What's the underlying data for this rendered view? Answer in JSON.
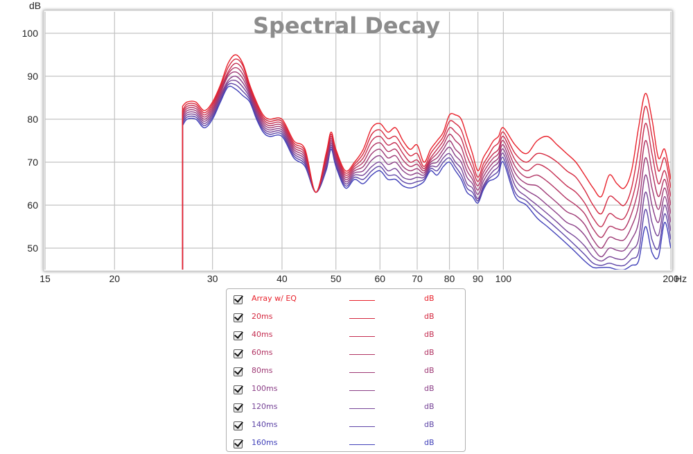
{
  "chart_data": {
    "type": "line",
    "title": "Spectral Decay",
    "ylabel": "dB",
    "xunit": "Hz",
    "xscale": "log",
    "xlim": [
      15,
      200
    ],
    "ylim": [
      45,
      105
    ],
    "xticks": [
      15,
      20,
      30,
      40,
      50,
      60,
      70,
      80,
      90,
      100,
      200
    ],
    "xtick_labels": [
      "15",
      "20",
      "30",
      "40",
      "50",
      "60",
      "70",
      "80",
      "90",
      "100",
      "200"
    ],
    "yticks": [
      50,
      60,
      70,
      80,
      90,
      100
    ],
    "grid": true,
    "legend_position": "bottom-center",
    "x": [
      26.5,
      27,
      28,
      29,
      30,
      31,
      32,
      33,
      34,
      35,
      36,
      37,
      38,
      40,
      42,
      44,
      46,
      48,
      49,
      50,
      52,
      54,
      56,
      58,
      60,
      62,
      64,
      66,
      68,
      70,
      72,
      74,
      76,
      78,
      80,
      82,
      84,
      86,
      88,
      90,
      92,
      94,
      96,
      98,
      100,
      105,
      110,
      115,
      120,
      125,
      130,
      135,
      140,
      145,
      150,
      155,
      160,
      165,
      170,
      175,
      180,
      185,
      190,
      195,
      200
    ],
    "series": [
      {
        "name": "Array w/ EQ",
        "unit": "dB",
        "color": "#e8202a",
        "values": [
          83,
          84,
          84,
          82,
          84,
          88,
          93,
          95,
          93,
          88,
          84,
          81,
          80,
          80,
          75,
          73,
          63,
          72,
          77,
          73,
          68,
          70,
          73,
          78,
          79,
          77,
          78,
          75,
          73,
          74,
          70,
          73,
          75,
          77,
          81,
          81,
          80,
          76,
          72,
          68,
          71,
          73,
          75,
          76,
          78,
          74,
          72,
          75,
          76,
          74,
          72,
          70,
          67,
          64,
          62,
          67,
          65,
          64,
          68,
          78,
          86,
          80,
          71,
          73,
          66
        ]
      },
      {
        "name": "20ms",
        "unit": "dB",
        "color": "#d4263d",
        "values": [
          82,
          83.5,
          83.5,
          81.5,
          83.5,
          87.5,
          92,
          94,
          92.5,
          87.5,
          83.5,
          80.5,
          79.5,
          79.5,
          74.5,
          72.5,
          63,
          71.5,
          76.5,
          72.5,
          67.5,
          69.5,
          72,
          76.5,
          77.5,
          75.5,
          76,
          73.5,
          71.5,
          72,
          69,
          72,
          74,
          76,
          79.5,
          79,
          77.5,
          73.5,
          70,
          66.5,
          69.5,
          71.5,
          73.5,
          74.5,
          77,
          72,
          70,
          72,
          71.5,
          70,
          68,
          66.5,
          63.5,
          60,
          58,
          62,
          61,
          60,
          64,
          73,
          83,
          76,
          68,
          71,
          64
        ]
      },
      {
        "name": "40ms",
        "unit": "dB",
        "color": "#c42c50",
        "values": [
          81.5,
          83,
          83,
          81,
          83,
          87,
          91,
          93,
          91.5,
          87,
          83,
          80,
          79,
          79,
          74,
          72,
          63,
          71,
          76,
          72,
          67,
          69,
          71,
          75,
          76,
          74,
          74.5,
          72,
          70,
          70.5,
          68.5,
          71,
          73,
          75,
          78,
          77,
          75.5,
          71.5,
          68.5,
          65.5,
          68.5,
          70.5,
          72,
          73,
          76,
          70.5,
          68,
          69.5,
          68.5,
          66.5,
          64.5,
          63,
          60.5,
          57,
          55,
          58,
          57,
          57,
          61,
          68,
          79,
          72,
          65,
          68,
          62
        ]
      },
      {
        "name": "60ms",
        "unit": "dB",
        "color": "#b13262",
        "values": [
          81,
          82.5,
          82.5,
          80.5,
          82.5,
          86.5,
          90.5,
          92,
          90.5,
          86.5,
          82.5,
          79.5,
          78.5,
          78.5,
          73.5,
          71.5,
          63,
          70.5,
          75.5,
          71.5,
          66.5,
          68.5,
          70,
          73.5,
          74.5,
          72.5,
          73,
          70.5,
          69,
          69.5,
          68,
          70.5,
          72,
          74,
          76.5,
          75,
          73.5,
          69.5,
          67,
          64.5,
          67.5,
          69.5,
          71,
          72,
          75,
          69,
          66.5,
          67,
          65.5,
          63.5,
          61.5,
          60,
          58,
          54.5,
          52.5,
          55,
          54.5,
          54.5,
          58,
          64,
          75,
          68,
          62,
          66,
          60
        ]
      },
      {
        "name": "80ms",
        "unit": "dB",
        "color": "#9e3874",
        "values": [
          80.5,
          82,
          82,
          80,
          82,
          86,
          90,
          91,
          89.5,
          86,
          82,
          79,
          78,
          78,
          73,
          71,
          63,
          70,
          75,
          71,
          66,
          68,
          69,
          72,
          73,
          71,
          71.5,
          69,
          68,
          68.5,
          67.5,
          70,
          71,
          73,
          75,
          73,
          71.5,
          68,
          66,
          63.5,
          66.5,
          68.5,
          70,
          71,
          74,
          67.5,
          65,
          64.5,
          62.5,
          60.5,
          58.5,
          57.5,
          55.5,
          52,
          50,
          52.5,
          52,
          52,
          55,
          60,
          71,
          64,
          59,
          64,
          58
        ]
      },
      {
        "name": "100ms",
        "unit": "dB",
        "color": "#8a3d86",
        "values": [
          80,
          81.5,
          81.5,
          79.5,
          81.5,
          85.5,
          89,
          90,
          88.5,
          85.5,
          81.5,
          78.5,
          77.5,
          77.5,
          72.5,
          70.5,
          63,
          69.5,
          74.5,
          70.5,
          65.5,
          67.5,
          68,
          70.5,
          71.5,
          69.5,
          70,
          68,
          67,
          67.5,
          67,
          69.5,
          70,
          72,
          73.5,
          71.5,
          70,
          66.5,
          65,
          62.5,
          65.5,
          67.5,
          69,
          70,
          73,
          66,
          63.5,
          62,
          60,
          58,
          56,
          55,
          53,
          50,
          48,
          50,
          49.5,
          49.5,
          52,
          56,
          67,
          60,
          56,
          62,
          56
        ]
      },
      {
        "name": "120ms",
        "unit": "dB",
        "color": "#754296",
        "values": [
          79.5,
          81,
          81,
          79,
          81,
          85,
          88.5,
          89,
          87.5,
          85,
          81,
          78,
          77,
          77,
          72,
          70,
          63,
          69,
          74,
          70,
          65,
          67,
          67,
          69,
          70,
          68,
          68.5,
          66.5,
          66,
          66.5,
          66.5,
          69,
          69,
          71,
          72,
          70,
          68.5,
          65,
          64,
          61.5,
          64.5,
          66.5,
          68,
          69,
          72,
          64.5,
          62,
          60,
          58,
          56,
          54,
          52.5,
          50.5,
          48,
          47,
          48,
          47.5,
          47.5,
          49.5,
          52,
          63,
          56,
          53,
          60,
          54
        ]
      },
      {
        "name": "140ms",
        "unit": "dB",
        "color": "#5c43a6",
        "values": [
          79,
          80.5,
          80.5,
          78.5,
          80.5,
          84.5,
          88,
          88,
          86.5,
          84.5,
          80.5,
          77.5,
          76.5,
          76.5,
          71.5,
          69.5,
          63,
          68.5,
          73.5,
          69.5,
          64.5,
          66.5,
          66,
          68,
          69,
          67,
          67,
          65.5,
          65,
          65.5,
          66,
          68.5,
          68,
          70,
          71,
          69,
          67,
          64,
          63,
          61,
          64,
          66,
          67,
          68,
          71,
          63,
          61,
          58.5,
          56.5,
          54.5,
          52.5,
          50.5,
          48.5,
          46.5,
          46,
          46.5,
          46,
          46,
          47.5,
          49,
          59,
          52,
          50,
          58,
          52
        ]
      },
      {
        "name": "160ms",
        "unit": "dB",
        "color": "#3e3eb8",
        "values": [
          78.5,
          80,
          80,
          78,
          80,
          84,
          87.5,
          87,
          85.5,
          84,
          80,
          77,
          76,
          76,
          71,
          69,
          63,
          68,
          73,
          69,
          64,
          66,
          65,
          67,
          68,
          66,
          66,
          64.5,
          64,
          64.5,
          65.5,
          68,
          67,
          69,
          70,
          68,
          66,
          63,
          62,
          60.5,
          63.5,
          65.5,
          66,
          67,
          70,
          62,
          60,
          57,
          55,
          53,
          51,
          49,
          47,
          45.5,
          45.5,
          45.5,
          45,
          45,
          46,
          47,
          55,
          49,
          48,
          56,
          50
        ]
      }
    ]
  }
}
